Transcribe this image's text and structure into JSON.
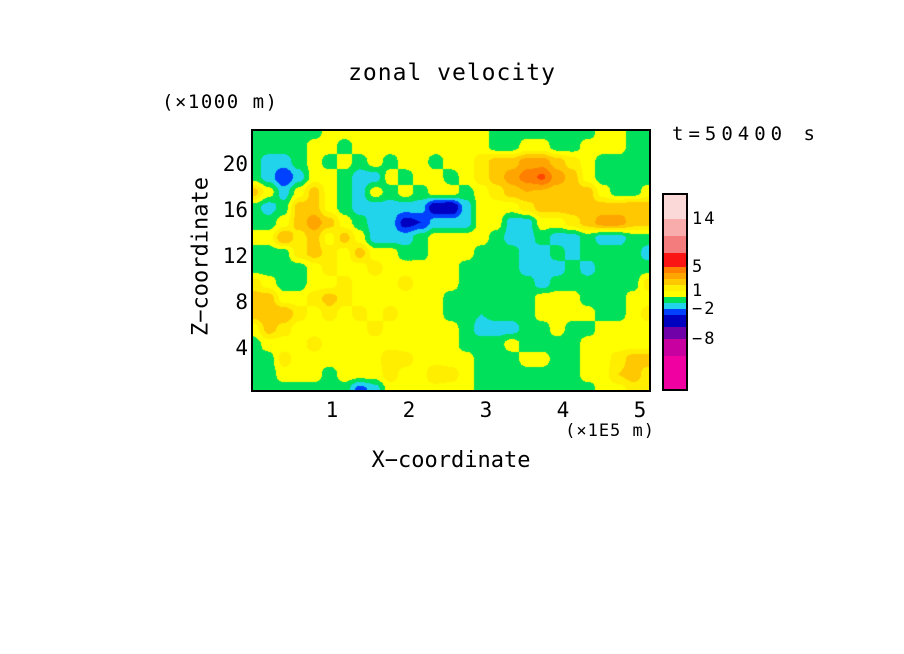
{
  "title": "zonal velocity",
  "annotations": {
    "y_units": "(×1000 m)",
    "x_units": "(×1E5 m)",
    "time_label": "t=50400 s"
  },
  "axes": {
    "x_label": "X−coordinate",
    "z_label": "Z−coordinate",
    "x_ticks": [
      "1",
      "2",
      "3",
      "4",
      "5"
    ],
    "z_ticks": [
      "20",
      "16",
      "12",
      "8",
      "4"
    ]
  },
  "colorbar": {
    "segments": [
      {
        "color": "#FBD9D9",
        "h": 24
      },
      {
        "color": "#F8ACAC",
        "h": 17
      },
      {
        "color": "#F47C7C",
        "h": 17
      },
      {
        "color": "#FA1414",
        "h": 14
      },
      {
        "color": "#FF8000",
        "h": 6
      },
      {
        "color": "#FFA500",
        "h": 6
      },
      {
        "color": "#FFC800",
        "h": 6
      },
      {
        "color": "#FFF000",
        "h": 6
      },
      {
        "color": "#FFFF00",
        "h": 6
      },
      {
        "color": "#00E05A",
        "h": 6
      },
      {
        "color": "#21D4EC",
        "h": 6
      },
      {
        "color": "#0041FF",
        "h": 6
      },
      {
        "color": "#0000C0",
        "h": 12
      },
      {
        "color": "#7000A8",
        "h": 12
      },
      {
        "color": "#C800A0",
        "h": 17
      },
      {
        "color": "#F000A0",
        "h": 33
      }
    ],
    "labels": [
      {
        "text": "14",
        "after_segment": 0
      },
      {
        "text": "5",
        "after_segment": 3
      },
      {
        "text": "1",
        "after_segment": 7
      },
      {
        "text": "−2",
        "after_segment": 10
      },
      {
        "text": "−8",
        "after_segment": 13
      }
    ]
  },
  "chart_data": {
    "type": "heatmap",
    "subtype": "filled-contour",
    "title": "zonal velocity",
    "xlabel": "X−coordinate (×1E5 m)",
    "ylabel": "Z−coordinate (×1000 m)",
    "time": "t=50400 s",
    "x_range": [
      0,
      5.13
    ],
    "z_range": [
      0.3,
      22.9
    ],
    "legend_position": "right-colorbar",
    "colorbar_tick_values": [
      14,
      5,
      1,
      -2,
      -8
    ],
    "levels": [
      -3,
      -2,
      -1,
      0,
      1,
      2,
      3,
      4,
      5
    ],
    "band_colors": [
      "#0000C0",
      "#0041FF",
      "#21D4EC",
      "#00E05A",
      "#FFFF00",
      "#FFEE00",
      "#FFC800",
      "#FFA500",
      "#FF8000",
      "#FF4700"
    ],
    "grid_note": "zonal velocity values on 18 rows (top z=22.9 to bottom z=0.3) x 27 columns (x=0..5.13)",
    "grid": [
      [
        -0.5,
        -0.5,
        -0.5,
        -0.5,
        -0.5,
        0.5,
        0.5,
        0.5,
        0.5,
        0.5,
        0.5,
        0.5,
        0.5,
        0.5,
        0.5,
        0.5,
        -0.5,
        -0.5,
        -0.5,
        -0.5,
        -0.5,
        -0.5,
        -0.5,
        0.5,
        0.5,
        -0.5,
        -0.5
      ],
      [
        -0.5,
        -0.5,
        -0.5,
        -0.5,
        0.5,
        0.5,
        -0.5,
        0.5,
        0.5,
        0.5,
        0.5,
        0.5,
        0.5,
        0.5,
        0.5,
        0.5,
        -0.5,
        -0.5,
        0.5,
        0.5,
        -0.5,
        -0.5,
        0.5,
        0.5,
        0.5,
        -0.5,
        -0.5
      ],
      [
        -0.5,
        -1.5,
        -1.5,
        -0.5,
        0.5,
        -0.5,
        0.5,
        -0.5,
        0.5,
        -0.5,
        0.5,
        0.5,
        -0.5,
        0.5,
        0.5,
        1.5,
        2.5,
        2.5,
        3.5,
        3.5,
        2.5,
        1.5,
        0.5,
        -0.5,
        -0.5,
        -0.5,
        -0.5
      ],
      [
        -0.5,
        -1.5,
        -3.0,
        -1.5,
        0.5,
        0.5,
        -0.5,
        -1.5,
        -1.5,
        0.5,
        -0.5,
        0.5,
        0.5,
        -0.5,
        0.5,
        1.5,
        2.5,
        3.5,
        4.5,
        5.2,
        3.5,
        2.5,
        0.5,
        -0.5,
        -0.5,
        -0.5,
        -0.5
      ],
      [
        2.5,
        0.5,
        -1.5,
        0.5,
        2.5,
        0.5,
        -0.5,
        -1.5,
        0.5,
        -0.5,
        0.5,
        -0.5,
        0.5,
        0.5,
        -0.5,
        0.5,
        1.5,
        2.5,
        3.0,
        2.8,
        2.5,
        2.5,
        2.5,
        0.5,
        -0.5,
        -0.5,
        0.5
      ],
      [
        -0.5,
        -1.5,
        -0.5,
        2.5,
        2.5,
        0.5,
        -0.5,
        -1.5,
        -1.5,
        -1.5,
        -1.5,
        -1.5,
        -4.0,
        -4.2,
        -1.5,
        0.5,
        0.5,
        0.5,
        1.5,
        2.5,
        2.5,
        2.5,
        2.5,
        2.5,
        2.5,
        3.0,
        2.5
      ],
      [
        -0.5,
        -0.5,
        0.5,
        2.5,
        3.5,
        2.5,
        0.5,
        -0.5,
        -1.5,
        -1.5,
        -3.5,
        -3.0,
        -1.5,
        -1.5,
        -1.5,
        0.5,
        0.5,
        -1.5,
        -1.5,
        0.5,
        0.5,
        1.5,
        2.5,
        3.5,
        3.5,
        2.5,
        2.5
      ],
      [
        0.5,
        0.5,
        3.0,
        1.5,
        2.5,
        0.5,
        2.5,
        0.5,
        -1.5,
        -1.5,
        -1.5,
        -0.5,
        0.5,
        0.5,
        0.5,
        0.5,
        -0.5,
        -1.5,
        -1.5,
        -0.5,
        -1.5,
        -1.5,
        -0.5,
        -1.5,
        -1.5,
        -0.5,
        -0.5
      ],
      [
        -0.5,
        -0.5,
        -0.5,
        1.5,
        2.5,
        1.5,
        0.5,
        2.5,
        0.5,
        0.5,
        -0.5,
        -0.5,
        0.5,
        0.5,
        0.5,
        -0.5,
        -0.5,
        -0.5,
        -1.5,
        -1.5,
        -0.5,
        -1.5,
        -0.5,
        -0.5,
        -0.5,
        -0.5,
        -1.5
      ],
      [
        -0.5,
        -0.5,
        -0.5,
        -0.5,
        0.5,
        1.5,
        0.5,
        0.5,
        1.5,
        0.5,
        0.5,
        0.5,
        0.5,
        0.5,
        -0.5,
        -0.5,
        -0.5,
        -0.5,
        -1.5,
        -1.5,
        -1.5,
        -0.5,
        -1.5,
        -0.5,
        -0.5,
        -0.5,
        -0.5
      ],
      [
        1.5,
        0.5,
        -0.5,
        -0.5,
        0.5,
        0.5,
        1.5,
        0.5,
        0.5,
        0.5,
        1.5,
        0.5,
        0.5,
        0.5,
        -0.5,
        -0.5,
        -0.5,
        -0.5,
        -0.5,
        -1.5,
        -0.5,
        -0.5,
        -0.5,
        -0.5,
        -0.5,
        -0.5,
        1.5
      ],
      [
        2.5,
        2.5,
        0.5,
        0.5,
        1.5,
        2.5,
        1.5,
        0.5,
        0.5,
        0.5,
        0.5,
        0.5,
        0.5,
        -0.5,
        -0.5,
        -0.5,
        -0.5,
        -0.5,
        -0.5,
        0.5,
        0.5,
        0.5,
        -0.5,
        -0.5,
        -0.5,
        0.5,
        0.5
      ],
      [
        2.5,
        3.0,
        3.0,
        1.5,
        0.5,
        1.5,
        0.5,
        1.5,
        0.5,
        1.5,
        0.5,
        0.5,
        0.5,
        -0.5,
        -0.5,
        -1.0,
        -0.5,
        -0.5,
        -0.5,
        0.5,
        0.5,
        0.5,
        0.5,
        -0.5,
        -0.5,
        0.5,
        1.5
      ],
      [
        0.5,
        2.5,
        1.5,
        0.5,
        0.5,
        0.5,
        0.5,
        0.5,
        1.5,
        0.5,
        0.5,
        0.5,
        0.5,
        0.5,
        -0.5,
        -1.5,
        -1.5,
        -1.5,
        -0.5,
        -0.5,
        0.5,
        -0.5,
        -0.5,
        0.5,
        0.5,
        0.5,
        0.5
      ],
      [
        -0.5,
        0.5,
        0.5,
        0.5,
        1.5,
        0.5,
        0.5,
        0.5,
        0.5,
        0.5,
        0.5,
        0.5,
        0.5,
        0.5,
        -0.5,
        -0.5,
        -0.5,
        0.5,
        -0.5,
        -0.5,
        -0.5,
        -0.5,
        0.5,
        0.5,
        0.5,
        0.5,
        0.5
      ],
      [
        -0.5,
        -0.5,
        1.5,
        0.5,
        0.5,
        0.5,
        0.5,
        0.5,
        0.5,
        2.0,
        1.5,
        0.5,
        0.5,
        0.5,
        0.5,
        -0.5,
        -0.5,
        -0.5,
        0.5,
        0.5,
        -0.5,
        -0.5,
        0.5,
        0.5,
        1.5,
        2.5,
        2.5
      ],
      [
        -0.5,
        -0.5,
        0.5,
        0.5,
        0.5,
        -0.5,
        0.5,
        0.5,
        0.5,
        1.5,
        0.5,
        0.5,
        2.0,
        1.5,
        0.5,
        -0.5,
        -0.5,
        -0.5,
        -0.5,
        -0.5,
        -0.5,
        -0.5,
        0.5,
        0.5,
        2.0,
        2.5,
        1.5
      ],
      [
        -0.5,
        -0.5,
        -0.5,
        -0.5,
        -0.5,
        -0.5,
        -0.5,
        -2.5,
        -1.5,
        0.5,
        0.5,
        0.5,
        0.5,
        0.5,
        0.5,
        -0.5,
        -0.5,
        -0.5,
        -0.5,
        -0.5,
        -0.5,
        -0.5,
        -0.5,
        0.5,
        0.5,
        1.5,
        1.5
      ]
    ]
  }
}
